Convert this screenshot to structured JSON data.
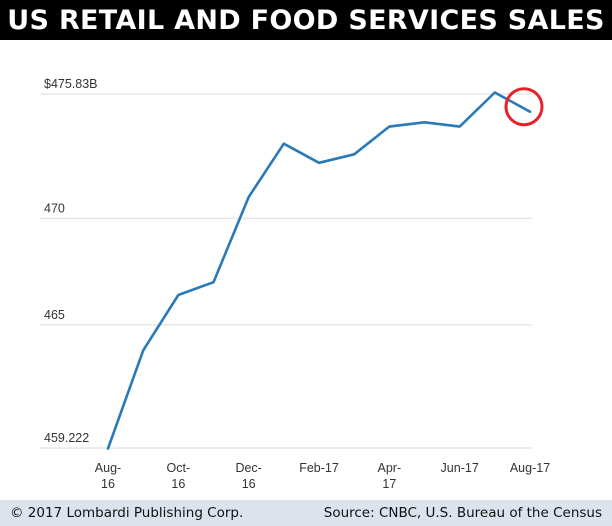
{
  "header": {
    "title": "US RETAIL AND FOOD SERVICES SALES"
  },
  "footer": {
    "copyright": "© 2017 Lombardi Publishing Corp.",
    "source": "Source: CNBC, U.S. Bureau of the Census"
  },
  "colors": {
    "line": "#2a7ab8",
    "highlight_circle": "#e8202a",
    "grid": "#dcdcdc",
    "title_bg": "#000000",
    "footer_bg": "#dde3ec"
  },
  "chart_data": {
    "type": "line",
    "title": "US RETAIL AND FOOD SERVICES SALES",
    "xlabel": "",
    "ylabel": "",
    "ylim": [
      459.222,
      475.83
    ],
    "grid": true,
    "y_ticks": [
      {
        "value": 475.83,
        "label": "$475.83B"
      },
      {
        "value": 470,
        "label": "470"
      },
      {
        "value": 465,
        "label": "465"
      },
      {
        "value": 459.222,
        "label": "459.222"
      }
    ],
    "x_ticks": [
      {
        "index": 0,
        "label": [
          "Aug-",
          "16"
        ]
      },
      {
        "index": 2,
        "label": [
          "Oct-",
          "16"
        ]
      },
      {
        "index": 4,
        "label": [
          "Dec-",
          "16"
        ]
      },
      {
        "index": 6,
        "label": [
          "Feb-17"
        ]
      },
      {
        "index": 8,
        "label": [
          "Apr-",
          "17"
        ]
      },
      {
        "index": 10,
        "label": [
          "Jun-17"
        ]
      },
      {
        "index": 12,
        "label": [
          "Aug-17"
        ]
      }
    ],
    "x": [
      "Aug-16",
      "Sep-16",
      "Oct-16",
      "Nov-16",
      "Dec-16",
      "Jan-17",
      "Feb-17",
      "Mar-17",
      "Apr-17",
      "May-17",
      "Jun-17",
      "Jul-17",
      "Aug-17"
    ],
    "values": [
      459.2,
      463.8,
      466.4,
      467.0,
      471.0,
      473.5,
      472.6,
      473.0,
      474.3,
      474.5,
      474.3,
      475.9,
      475.0
    ],
    "annotations": [
      {
        "type": "circle",
        "at_index": 12
      }
    ]
  }
}
